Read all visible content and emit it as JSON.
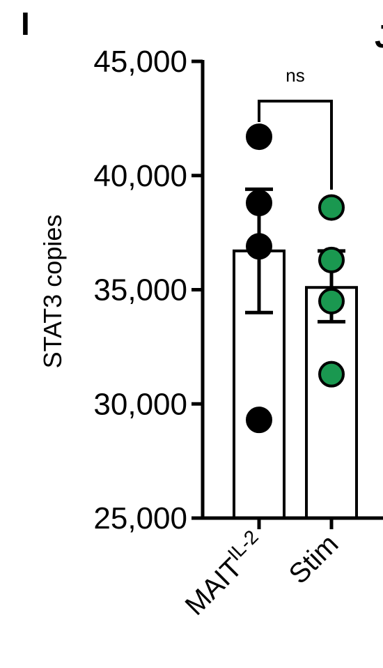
{
  "panel_label": "I",
  "next_panel_label": "J",
  "colors": {
    "axis": "#000000",
    "bar_fill": "#ffffff",
    "series_0_point": "#000000",
    "series_1_point": "#1a9850"
  },
  "chart_data": {
    "type": "bar",
    "title": "",
    "xlabel": "",
    "ylabel": "STAT3 copies",
    "ylim": [
      25000,
      45000
    ],
    "yticks": [
      25000,
      30000,
      35000,
      40000,
      45000
    ],
    "ytick_labels": [
      "25,000",
      "30,000",
      "35,000",
      "40,000",
      "45,000"
    ],
    "grid": false,
    "categories": [
      {
        "label": "MAIT",
        "superscript": "IL-2"
      },
      {
        "label": "Stim",
        "superscript": ""
      }
    ],
    "values": [
      36700,
      35100
    ],
    "error_bars": [
      {
        "lower": 34000,
        "upper": 39400
      },
      {
        "lower": 33600,
        "upper": 36700
      }
    ],
    "points": [
      [
        41700,
        38800,
        36900,
        29300
      ],
      [
        38600,
        36300,
        34500,
        31300
      ]
    ],
    "significance": [
      {
        "between": [
          0,
          1
        ],
        "label": "ns"
      }
    ]
  }
}
